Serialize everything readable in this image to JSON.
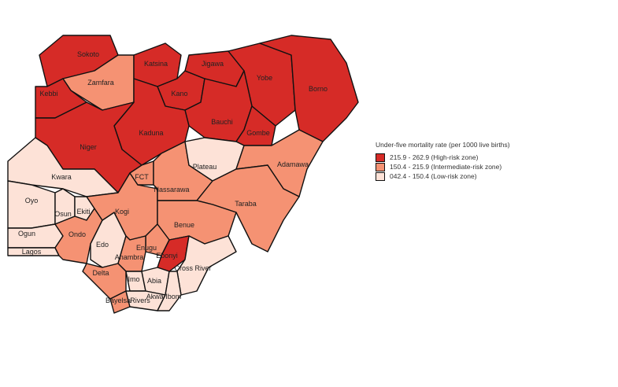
{
  "legend": {
    "title": "Under-five mortality rate (per 1000 live births)",
    "classes": [
      {
        "label": "215.9 - 262.9 (High-risk zone)",
        "color": "#d62b27",
        "key": "high"
      },
      {
        "label": "150.4 - 215.9 (Intermediate-risk zone)",
        "color": "#f59273",
        "key": "mid"
      },
      {
        "label": "042.4 - 150.4 (Low-risk zone)",
        "color": "#fde2d7",
        "key": "low"
      }
    ]
  },
  "states": [
    {
      "name": "Sokoto",
      "risk": "high"
    },
    {
      "name": "Zamfara",
      "risk": "mid"
    },
    {
      "name": "Kebbi",
      "risk": "high"
    },
    {
      "name": "Katsina",
      "risk": "high"
    },
    {
      "name": "Kano",
      "risk": "high"
    },
    {
      "name": "Jigawa",
      "risk": "high"
    },
    {
      "name": "Yobe",
      "risk": "high"
    },
    {
      "name": "Borno",
      "risk": "high"
    },
    {
      "name": "Bauchi",
      "risk": "high"
    },
    {
      "name": "Gombe",
      "risk": "high"
    },
    {
      "name": "Kaduna",
      "risk": "high"
    },
    {
      "name": "Niger",
      "risk": "high"
    },
    {
      "name": "Kwara",
      "risk": "low"
    },
    {
      "name": "Oyo",
      "risk": "low"
    },
    {
      "name": "Osun",
      "risk": "low"
    },
    {
      "name": "Ekiti",
      "risk": "low"
    },
    {
      "name": "Ogun",
      "risk": "low"
    },
    {
      "name": "Lagos",
      "risk": "low"
    },
    {
      "name": "Ondo",
      "risk": "mid"
    },
    {
      "name": "Edo",
      "risk": "low"
    },
    {
      "name": "Kogi",
      "risk": "mid"
    },
    {
      "name": "FCT",
      "risk": "mid"
    },
    {
      "name": "Nassarawa",
      "risk": "mid"
    },
    {
      "name": "Plateau",
      "risk": "low"
    },
    {
      "name": "Adamawa",
      "risk": "mid"
    },
    {
      "name": "Taraba",
      "risk": "mid"
    },
    {
      "name": "Benue",
      "risk": "mid"
    },
    {
      "name": "Enugu",
      "risk": "mid"
    },
    {
      "name": "Anambra",
      "risk": "mid"
    },
    {
      "name": "Ebonyi",
      "risk": "high"
    },
    {
      "name": "Cross River",
      "risk": "low"
    },
    {
      "name": "Delta",
      "risk": "mid"
    },
    {
      "name": "Bayelsa",
      "risk": "mid"
    },
    {
      "name": "Imo",
      "risk": "low"
    },
    {
      "name": "Abia",
      "risk": "low"
    },
    {
      "name": "Rivers",
      "risk": "low"
    },
    {
      "name": "Akwa Ibom",
      "risk": "low"
    }
  ]
}
